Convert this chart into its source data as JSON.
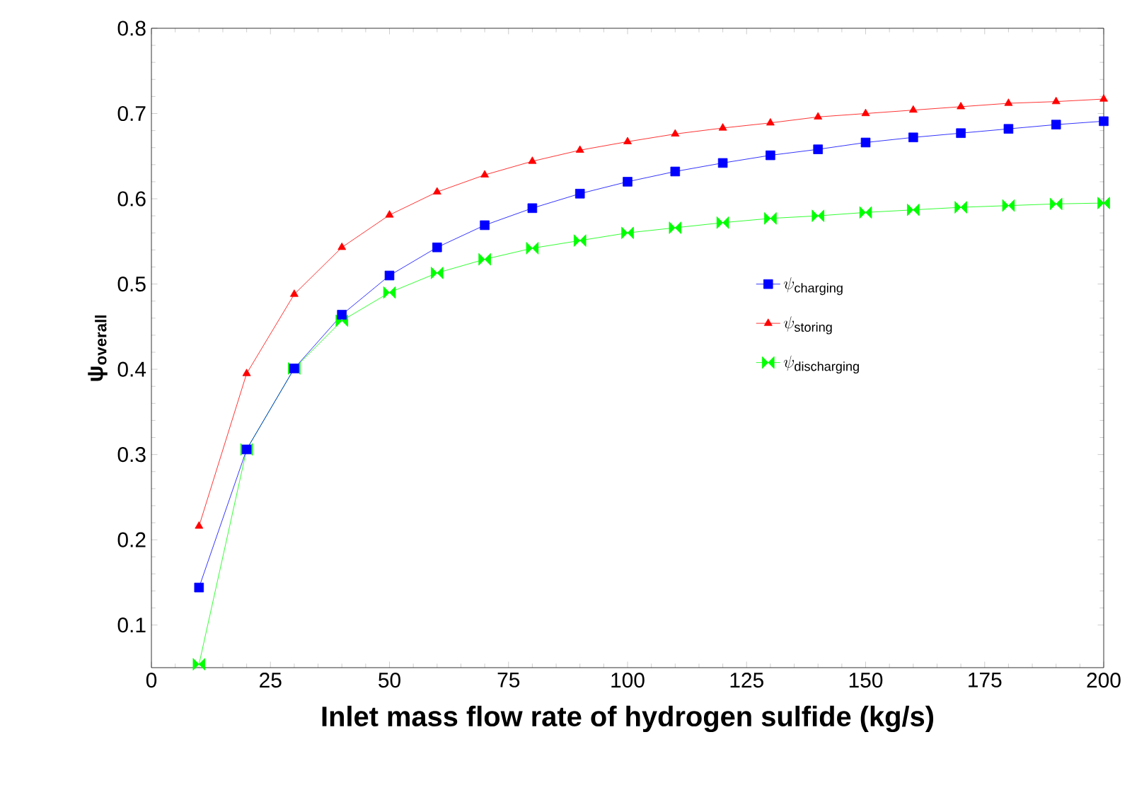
{
  "chart_data": {
    "type": "line",
    "xlabel": "Inlet mass flow rate of hydrogen sulfide (kg/s)",
    "ylabel": "ψ$_{overall}$",
    "x": [
      10,
      20,
      30,
      40,
      50,
      60,
      70,
      80,
      90,
      100,
      110,
      120,
      130,
      140,
      150,
      160,
      170,
      180,
      190,
      200
    ],
    "xlim": [
      0,
      200
    ],
    "xticks": [
      0,
      25,
      50,
      75,
      100,
      125,
      150,
      175,
      200
    ],
    "ylim": [
      0.05,
      0.8
    ],
    "yticks": [
      0.1,
      0.2,
      0.3,
      0.4,
      0.5,
      0.6,
      0.7,
      0.8
    ],
    "grid": false,
    "legend": "right",
    "line_style": "solid",
    "series": [
      {
        "name": "\\psi_{\\mathrm{charging}}",
        "color": "#0000ff",
        "marker": "square",
        "values": [
          0.144,
          0.306,
          0.401,
          0.464,
          0.51,
          0.543,
          0.569,
          0.589,
          0.606,
          0.62,
          0.632,
          0.642,
          0.651,
          0.658,
          0.666,
          0.672,
          0.677,
          0.682,
          0.687,
          0.691
        ]
      },
      {
        "name": "\\psi_{\\mathrm{storing}}",
        "color": "#ff0000",
        "marker": "triangle",
        "values": [
          0.216,
          0.395,
          0.488,
          0.543,
          0.581,
          0.608,
          0.628,
          0.644,
          0.657,
          0.667,
          0.676,
          0.683,
          0.689,
          0.696,
          0.7,
          0.704,
          0.708,
          0.712,
          0.714,
          0.717
        ]
      },
      {
        "name": "\\psi_{\\mathrm{discharging}}",
        "color": "#00ff00",
        "marker": "diamond",
        "values": [
          0.054,
          0.306,
          0.401,
          0.457,
          0.49,
          0.513,
          0.529,
          0.542,
          0.551,
          0.56,
          0.566,
          0.572,
          0.577,
          0.58,
          0.584,
          0.587,
          0.59,
          0.592,
          0.594,
          0.595
        ]
      }
    ]
  }
}
